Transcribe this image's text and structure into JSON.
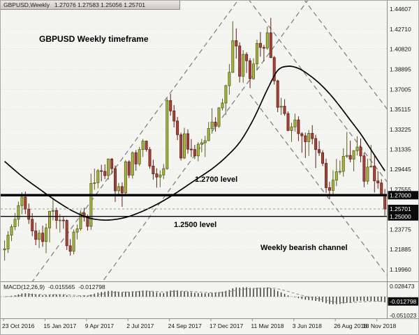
{
  "window": {
    "title": "GBPUSD,Weekly",
    "ohlc": "1.27076 1.27583 1.25056 1.25701"
  },
  "annotations": {
    "timeframe": "GBPUSD Weekly timeframe",
    "level_2700": "1.2700 level",
    "level_2500": "1.2500 level",
    "channel": "Weekly bearish channel"
  },
  "colors": {
    "bg": "#f4f4f1",
    "grid": "#dcdcd6",
    "bull": "#a9b53e",
    "bull_border": "#59601c",
    "bear": "#a8453b",
    "bear_border": "#5f2018",
    "ma": "#000000",
    "channel": "#7a7a7a",
    "level": "#000000",
    "badge_bg": "#0a0a0a",
    "macd_bar": "#3b3b3b",
    "macd_signal": "#8a8a8a"
  },
  "chart_data": {
    "type": "candlestick",
    "symbol": "GBPUSD",
    "timeframe": "Weekly",
    "title": "GBPUSD,Weekly",
    "current_price": {
      "value": 1.25701,
      "label": "1.25701"
    },
    "price_axis": {
      "labels": [
        "1.44607",
        "1.42710",
        "1.40820",
        "1.38895",
        "1.37005",
        "1.35115",
        "1.33225",
        "1.31335",
        "1.29445",
        "1.27555",
        "1.23775",
        "1.21885",
        "1.19960"
      ],
      "badges": [
        {
          "text": "1.27000",
          "price": 1.27
        },
        {
          "text": "1.25701",
          "price": 1.25701
        },
        {
          "text": "1.25000",
          "price": 1.25
        }
      ]
    },
    "hlines": [
      {
        "price": 1.27,
        "width": 3.5
      },
      {
        "price": 1.25,
        "width": 1.4
      }
    ],
    "x_axis": {
      "labels": [
        "23 Oct 2016",
        "15 Jan 2017",
        "9 Apr 2017",
        "2 Jul 2017",
        "24 Sep 2017",
        "17 Dec 2017",
        "11 Mar 2018",
        "3 Jun 2018",
        "26 Aug 2018",
        "18 Nov 2018"
      ],
      "weeks_per_label": 12
    },
    "candles": [
      [
        1.2183,
        1.2272,
        1.2082,
        1.2193
      ],
      [
        1.2193,
        1.2361,
        1.2153,
        1.2322
      ],
      [
        1.2322,
        1.2425,
        1.2265,
        1.2402
      ],
      [
        1.2402,
        1.2532,
        1.237,
        1.2472
      ],
      [
        1.2472,
        1.264,
        1.2405,
        1.2602
      ],
      [
        1.2602,
        1.2729,
        1.252,
        1.2682
      ],
      [
        1.2682,
        1.2735,
        1.2522,
        1.2568
      ],
      [
        1.2568,
        1.2622,
        1.2428,
        1.2472
      ],
      [
        1.2472,
        1.253,
        1.2312,
        1.2362
      ],
      [
        1.2362,
        1.2442,
        1.2228,
        1.2282
      ],
      [
        1.2282,
        1.2372,
        1.22,
        1.2342
      ],
      [
        1.2342,
        1.2412,
        1.2212,
        1.2262
      ],
      [
        1.2262,
        1.2432,
        1.2152,
        1.2392
      ],
      [
        1.2392,
        1.2552,
        1.2254,
        1.2548
      ],
      [
        1.2548,
        1.2675,
        1.2462,
        1.2556
      ],
      [
        1.2556,
        1.2582,
        1.2382,
        1.2462
      ],
      [
        1.2462,
        1.2522,
        1.2347,
        1.2465
      ],
      [
        1.2465,
        1.2502,
        1.2383,
        1.2462
      ],
      [
        1.2462,
        1.2472,
        1.2182,
        1.2222
      ],
      [
        1.2222,
        1.2285,
        1.2128,
        1.217
      ],
      [
        1.217,
        1.2376,
        1.214,
        1.2352
      ],
      [
        1.2352,
        1.2422,
        1.2282,
        1.2382
      ],
      [
        1.2382,
        1.2558,
        1.2365,
        1.2532
      ],
      [
        1.2532,
        1.2582,
        1.2452,
        1.2492
      ],
      [
        1.2492,
        1.2518,
        1.2365,
        1.2406
      ],
      [
        1.2406,
        1.2905,
        1.2372,
        1.2812
      ],
      [
        1.2812,
        1.2952,
        1.2752,
        1.2818
      ],
      [
        1.2818,
        1.2948,
        1.2765,
        1.2932
      ],
      [
        1.2932,
        1.2988,
        1.2832,
        1.2926
      ],
      [
        1.2926,
        1.2992,
        1.2852,
        1.2886
      ],
      [
        1.2886,
        1.3048,
        1.2846,
        1.3042
      ],
      [
        1.3042,
        1.3052,
        1.2902,
        1.2952
      ],
      [
        1.2952,
        1.2982,
        1.2636,
        1.2742
      ],
      [
        1.2742,
        1.2815,
        1.2688,
        1.2782
      ],
      [
        1.2782,
        1.2822,
        1.259,
        1.2723
      ],
      [
        1.2723,
        1.3032,
        1.2706,
        1.3016
      ],
      [
        1.3016,
        1.3032,
        1.2862,
        1.289
      ],
      [
        1.289,
        1.3115,
        1.2856,
        1.3102
      ],
      [
        1.3102,
        1.3127,
        1.2932,
        1.2996
      ],
      [
        1.2996,
        1.3158,
        1.2976,
        1.3132
      ],
      [
        1.3132,
        1.3232,
        1.3062,
        1.3212
      ],
      [
        1.3212,
        1.3218,
        1.3112,
        1.3132
      ],
      [
        1.3132,
        1.3156,
        1.2952,
        1.2976
      ],
      [
        1.2976,
        1.3036,
        1.2846,
        1.2902
      ],
      [
        1.2902,
        1.2956,
        1.2772,
        1.2872
      ],
      [
        1.2872,
        1.2936,
        1.2776,
        1.2892
      ],
      [
        1.2892,
        1.2996,
        1.2852,
        1.2952
      ],
      [
        1.2952,
        1.3617,
        1.2942,
        1.3596
      ],
      [
        1.3596,
        1.3657,
        1.3452,
        1.3498
      ],
      [
        1.3498,
        1.3552,
        1.3342,
        1.3402
      ],
      [
        1.3402,
        1.3442,
        1.3222,
        1.3272
      ],
      [
        1.3272,
        1.3292,
        1.3028,
        1.3052
      ],
      [
        1.3052,
        1.3338,
        1.3042,
        1.3282
      ],
      [
        1.3282,
        1.3322,
        1.3092,
        1.3136
      ],
      [
        1.3136,
        1.3232,
        1.3062,
        1.3132
      ],
      [
        1.3132,
        1.3176,
        1.3042,
        1.3072
      ],
      [
        1.3072,
        1.3202,
        1.3022,
        1.3182
      ],
      [
        1.3182,
        1.3232,
        1.3106,
        1.3196
      ],
      [
        1.3196,
        1.3262,
        1.3062,
        1.3216
      ],
      [
        1.3216,
        1.3392,
        1.3212,
        1.3332
      ],
      [
        1.3332,
        1.3522,
        1.3282,
        1.3392
      ],
      [
        1.3392,
        1.3438,
        1.3302,
        1.3352
      ],
      [
        1.3352,
        1.3532,
        1.3338,
        1.3526
      ],
      [
        1.3526,
        1.3614,
        1.3502,
        1.3572
      ],
      [
        1.3572,
        1.3745,
        1.3458,
        1.3736
      ],
      [
        1.3736,
        1.3942,
        1.3652,
        1.3862
      ],
      [
        1.3862,
        1.4345,
        1.3856,
        1.4162
      ],
      [
        1.4162,
        1.4278,
        1.3992,
        1.4112
      ],
      [
        1.4112,
        1.4146,
        1.3766,
        1.3826
      ],
      [
        1.3826,
        1.4072,
        1.3764,
        1.4032
      ],
      [
        1.4032,
        1.4052,
        1.3856,
        1.3972
      ],
      [
        1.3972,
        1.3996,
        1.3712,
        1.3802
      ],
      [
        1.3802,
        1.3996,
        1.3792,
        1.3942
      ],
      [
        1.3942,
        1.4172,
        1.3882,
        1.4136
      ],
      [
        1.4136,
        1.4244,
        1.4012,
        1.4098
      ],
      [
        1.4098,
        1.4122,
        1.3966,
        1.4092
      ],
      [
        1.4092,
        1.4296,
        1.4076,
        1.4236
      ],
      [
        1.4236,
        1.4377,
        1.3996,
        1.4002
      ],
      [
        1.4002,
        1.4016,
        1.3747,
        1.3782
      ],
      [
        1.3782,
        1.3792,
        1.3486,
        1.3532
      ],
      [
        1.3532,
        1.3622,
        1.3458,
        1.3542
      ],
      [
        1.3542,
        1.3608,
        1.3452,
        1.3472
      ],
      [
        1.3472,
        1.3492,
        1.3306,
        1.3312
      ],
      [
        1.3312,
        1.3386,
        1.3205,
        1.3346
      ],
      [
        1.3346,
        1.3472,
        1.3302,
        1.3412
      ],
      [
        1.3412,
        1.3446,
        1.3212,
        1.3282
      ],
      [
        1.3282,
        1.3296,
        1.3102,
        1.3262
      ],
      [
        1.3262,
        1.3292,
        1.3052,
        1.3206
      ],
      [
        1.3206,
        1.3316,
        1.3072,
        1.3286
      ],
      [
        1.3286,
        1.3363,
        1.3182,
        1.3236
      ],
      [
        1.3236,
        1.3272,
        1.2957,
        1.3132
      ],
      [
        1.3132,
        1.3213,
        1.3072,
        1.3102
      ],
      [
        1.3102,
        1.3126,
        1.2976,
        1.3002
      ],
      [
        1.3002,
        1.3046,
        1.2722,
        1.2772
      ],
      [
        1.2772,
        1.2828,
        1.2662,
        1.2746
      ],
      [
        1.2746,
        1.2936,
        1.2696,
        1.2842
      ],
      [
        1.2842,
        1.3043,
        1.2786,
        1.2922
      ],
      [
        1.2922,
        1.3028,
        1.2896,
        1.2926
      ],
      [
        1.2926,
        1.3145,
        1.2876,
        1.3068
      ],
      [
        1.3068,
        1.3298,
        1.3052,
        1.3076
      ],
      [
        1.3076,
        1.3216,
        1.3012,
        1.3042
      ],
      [
        1.3042,
        1.3122,
        1.2926,
        1.3122
      ],
      [
        1.3122,
        1.3258,
        1.3076,
        1.3156
      ],
      [
        1.3156,
        1.3236,
        1.3012,
        1.3072
      ],
      [
        1.3072,
        1.3102,
        1.2776,
        1.2832
      ],
      [
        1.2832,
        1.3046,
        1.2802,
        1.2966
      ],
      [
        1.2966,
        1.3176,
        1.2962,
        1.2976
      ],
      [
        1.2976,
        1.3072,
        1.2726,
        1.2836
      ],
      [
        1.2836,
        1.2928,
        1.2762,
        1.2816
      ],
      [
        1.2816,
        1.2852,
        1.27,
        1.2708
      ],
      [
        1.27076,
        1.27583,
        1.25056,
        1.25701
      ]
    ],
    "ma_points": [
      [
        0,
        1.302
      ],
      [
        5,
        1.288
      ],
      [
        10,
        1.276
      ],
      [
        15,
        1.2645
      ],
      [
        20,
        1.2545
      ],
      [
        25,
        1.248
      ],
      [
        30,
        1.2465
      ],
      [
        35,
        1.249
      ],
      [
        40,
        1.255
      ],
      [
        45,
        1.263
      ],
      [
        50,
        1.273
      ],
      [
        55,
        1.284
      ],
      [
        60,
        1.295
      ],
      [
        64,
        1.306
      ],
      [
        68,
        1.32
      ],
      [
        72,
        1.342
      ],
      [
        76,
        1.37
      ],
      [
        79,
        1.388
      ],
      [
        82,
        1.392
      ],
      [
        85,
        1.39
      ],
      [
        88,
        1.384
      ],
      [
        91,
        1.376
      ],
      [
        94,
        1.366
      ],
      [
        97,
        1.354
      ],
      [
        100,
        1.341
      ],
      [
        103,
        1.328
      ],
      [
        106,
        1.313
      ],
      [
        108,
        1.303
      ],
      [
        110,
        1.293
      ]
    ],
    "channels": [
      {
        "name": "ascending-channel-lower",
        "pts": [
          6.3,
          1.1806,
          68.9,
          1.4606
        ]
      },
      {
        "name": "ascending-channel-upper",
        "pts": [
          24.4,
          1.1707,
          89.1,
          1.4606
        ]
      },
      {
        "name": "bearish-channel-upper",
        "pts": [
          69.0,
          1.462,
          111.0,
          1.281
        ]
      },
      {
        "name": "bearish-channel-outer",
        "pts": [
          85.0,
          1.462,
          111.0,
          1.35
        ]
      },
      {
        "name": "bearish-channel-lower",
        "pts": [
          71.0,
          1.365,
          111.0,
          1.1926
        ]
      }
    ],
    "macd": {
      "label": "MACD(12,26,9)",
      "value": "-0.015565",
      "signal_value": "-0.012798",
      "fast": 12,
      "slow": 26,
      "signal": 9,
      "axis_max": "0.028473",
      "axis_min": "-0.051023",
      "badge": "-0.012798"
    }
  }
}
